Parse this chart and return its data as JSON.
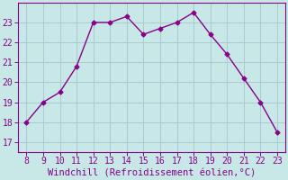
{
  "x": [
    8,
    9,
    10,
    11,
    12,
    13,
    14,
    15,
    16,
    17,
    18,
    19,
    20,
    21,
    22,
    23
  ],
  "y": [
    18.0,
    19.0,
    19.5,
    20.8,
    23.0,
    23.0,
    23.3,
    22.4,
    22.7,
    23.0,
    23.5,
    22.4,
    21.4,
    20.2,
    19.0,
    17.5
  ],
  "line_color": "#880088",
  "marker": "D",
  "marker_size": 2.5,
  "xlabel": "Windchill (Refroidissement éolien,°C)",
  "xlabel_color": "#880088",
  "ylabel_ticks": [
    17,
    18,
    19,
    20,
    21,
    22,
    23
  ],
  "xticks": [
    8,
    9,
    10,
    11,
    12,
    13,
    14,
    15,
    16,
    17,
    18,
    19,
    20,
    21,
    22,
    23
  ],
  "xlim": [
    7.5,
    23.5
  ],
  "ylim": [
    16.5,
    24.0
  ],
  "bg_color": "#c8e8e8",
  "plot_bg_color": "#c8e8e8",
  "grid_color": "#aacccc",
  "tick_color": "#880088",
  "spine_color": "#880088",
  "font_family": "monospace",
  "tick_fontsize": 7.0,
  "xlabel_fontsize": 7.5
}
